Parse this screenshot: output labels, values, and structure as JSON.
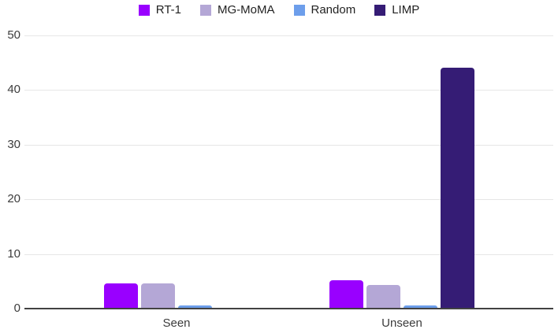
{
  "chart_data": {
    "type": "bar",
    "title": "",
    "xlabel": "",
    "ylabel": "",
    "categories": [
      "Seen",
      "Unseen"
    ],
    "series": [
      {
        "name": "RT-1",
        "color": "#9900ff",
        "values": [
          4.5,
          5.0
        ]
      },
      {
        "name": "MG-MoMA",
        "color": "#b4a7d6",
        "values": [
          4.5,
          4.2
        ]
      },
      {
        "name": "Random",
        "color": "#6d9eeb",
        "values": [
          0.4,
          0.4
        ]
      },
      {
        "name": "LIMP",
        "color": "#351c75",
        "values": [
          0,
          44.0
        ]
      }
    ],
    "ylim": [
      0,
      50
    ],
    "yticks": [
      0,
      10,
      20,
      30,
      40,
      50
    ],
    "grid": true,
    "legend_position": "top"
  }
}
